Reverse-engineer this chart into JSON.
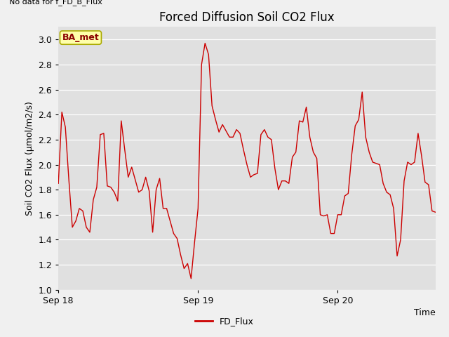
{
  "title": "Forced Diffusion Soil CO2 Flux",
  "ylabel": "Soil CO2 Flux (µmol/m2/s)",
  "xlabel": "Time",
  "top_left_text": "No data for f_FD_B_Flux",
  "legend_label": "FD_Flux",
  "ba_met_label": "BA_met",
  "ylim": [
    1.0,
    3.1
  ],
  "yticks": [
    1.0,
    1.2,
    1.4,
    1.6,
    1.8,
    2.0,
    2.2,
    2.4,
    2.6,
    2.8,
    3.0
  ],
  "line_color": "#cc0000",
  "background_color": "#e0e0e0",
  "fig_color": "#f0f0f0",
  "x_tick_labels": [
    "Sep 18",
    "Sep 19",
    "Sep 20"
  ],
  "data_y": [
    1.85,
    2.42,
    2.3,
    1.88,
    1.5,
    1.55,
    1.65,
    1.63,
    1.5,
    1.46,
    1.72,
    1.82,
    2.24,
    2.25,
    1.83,
    1.82,
    1.78,
    1.71,
    2.35,
    2.12,
    1.9,
    1.98,
    1.88,
    1.78,
    1.8,
    1.9,
    1.79,
    1.46,
    1.8,
    1.89,
    1.65,
    1.65,
    1.55,
    1.45,
    1.41,
    1.28,
    1.17,
    1.21,
    1.09,
    1.38,
    1.65,
    2.8,
    2.97,
    2.88,
    2.47,
    2.36,
    2.26,
    2.32,
    2.27,
    2.22,
    2.22,
    2.28,
    2.25,
    2.12,
    2.0,
    1.9,
    1.92,
    1.93,
    2.24,
    2.28,
    2.22,
    2.2,
    1.97,
    1.8,
    1.87,
    1.87,
    1.85,
    2.06,
    2.1,
    2.35,
    2.34,
    2.46,
    2.22,
    2.1,
    2.05,
    1.6,
    1.59,
    1.6,
    1.45,
    1.45,
    1.6,
    1.6,
    1.75,
    1.77,
    2.08,
    2.31,
    2.36,
    2.58,
    2.22,
    2.1,
    2.02,
    2.01,
    2.0,
    1.85,
    1.78,
    1.76,
    1.65,
    1.27,
    1.4,
    1.87,
    2.02,
    2.0,
    2.02,
    2.25,
    2.07,
    1.86,
    1.84,
    1.63,
    1.62
  ]
}
